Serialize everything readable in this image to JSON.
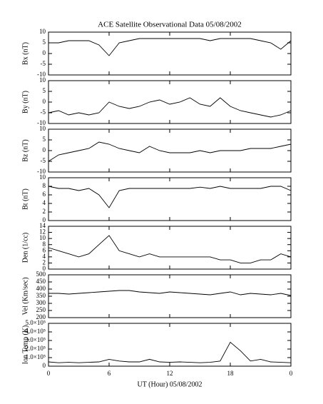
{
  "title": "ACE Satellite Observational Data   05/08/2002",
  "chart_data": [
    {
      "type": "line",
      "ylabel": "Bx (nT)",
      "xlim": [
        0,
        24
      ],
      "ylim": [
        -10,
        10
      ],
      "yticks": [
        -10,
        -5,
        0,
        5,
        10
      ],
      "x": [
        0,
        1,
        2,
        3,
        4,
        5,
        6,
        7,
        8,
        9,
        10,
        11,
        12,
        13,
        14,
        15,
        16,
        17,
        18,
        19,
        20,
        21,
        22,
        23,
        24
      ],
      "series": [
        {
          "color": "#000000",
          "values": [
            5,
            5,
            6,
            6,
            6,
            4,
            -1,
            5,
            6,
            7,
            7,
            7,
            7,
            7,
            7,
            7,
            6,
            7,
            7,
            7,
            7,
            6,
            5,
            2,
            6
          ]
        }
      ]
    },
    {
      "type": "line",
      "ylabel": "By (nT)",
      "xlim": [
        0,
        24
      ],
      "ylim": [
        -10,
        10
      ],
      "yticks": [
        -10,
        -5,
        0,
        5,
        10
      ],
      "x": [
        0,
        1,
        2,
        3,
        4,
        5,
        6,
        7,
        8,
        9,
        10,
        11,
        12,
        13,
        14,
        15,
        16,
        17,
        18,
        19,
        20,
        21,
        22,
        23,
        24
      ],
      "series": [
        {
          "color": "#000000",
          "values": [
            -5,
            -4,
            -6,
            -5,
            -6,
            -5,
            0,
            -2,
            -3,
            -2,
            0,
            1,
            -1,
            0,
            2,
            -1,
            -2,
            2,
            -2,
            -4,
            -5,
            -6,
            -7,
            -6,
            -4
          ]
        }
      ]
    },
    {
      "type": "line",
      "ylabel": "Bz (nT)",
      "xlim": [
        0,
        24
      ],
      "ylim": [
        -10,
        10
      ],
      "yticks": [
        -10,
        -5,
        0,
        5,
        10
      ],
      "x": [
        0,
        1,
        2,
        3,
        4,
        5,
        6,
        7,
        8,
        9,
        10,
        11,
        12,
        13,
        14,
        15,
        16,
        17,
        18,
        19,
        20,
        21,
        22,
        23,
        24
      ],
      "series": [
        {
          "color": "#000000",
          "values": [
            -5,
            -2,
            -1,
            0,
            1,
            4,
            3,
            1,
            0,
            -1,
            2,
            0,
            -1,
            -1,
            -1,
            0,
            -1,
            0,
            0,
            0,
            1,
            1,
            1,
            2,
            3
          ]
        }
      ]
    },
    {
      "type": "line",
      "ylabel": "Bt (nT)",
      "xlim": [
        0,
        24
      ],
      "ylim": [
        0,
        10
      ],
      "yticks": [
        0,
        2,
        4,
        6,
        8,
        10
      ],
      "x": [
        0,
        1,
        2,
        3,
        4,
        5,
        6,
        7,
        8,
        9,
        10,
        11,
        12,
        13,
        14,
        15,
        16,
        17,
        18,
        19,
        20,
        21,
        22,
        23,
        24
      ],
      "series": [
        {
          "color": "#000000",
          "values": [
            8,
            7.5,
            7.5,
            7,
            7.5,
            6,
            3,
            7,
            7.5,
            7.5,
            7.5,
            7.5,
            7.5,
            7.5,
            7.5,
            7.8,
            7.5,
            8,
            7.5,
            7.5,
            7.5,
            7.5,
            8,
            8,
            7
          ]
        }
      ]
    },
    {
      "type": "line",
      "ylabel": "Den (1/cc)",
      "xlim": [
        0,
        24
      ],
      "ylim": [
        0,
        14
      ],
      "yticks": [
        0,
        2,
        4,
        6,
        8,
        10,
        12,
        14
      ],
      "x": [
        0,
        1,
        2,
        3,
        4,
        5,
        6,
        7,
        8,
        9,
        10,
        11,
        12,
        13,
        14,
        15,
        16,
        17,
        18,
        19,
        20,
        21,
        22,
        23,
        24
      ],
      "series": [
        {
          "color": "#000000",
          "values": [
            7,
            6,
            5,
            4,
            5,
            8,
            11,
            6,
            5,
            4,
            5,
            4,
            4,
            4,
            4,
            4,
            4,
            3,
            3,
            2,
            2,
            3,
            3,
            5,
            4
          ]
        }
      ]
    },
    {
      "type": "line",
      "ylabel": "Vel (Km/sec)",
      "xlim": [
        0,
        24
      ],
      "ylim": [
        200,
        500
      ],
      "yticks": [
        200,
        250,
        300,
        350,
        400,
        450,
        500
      ],
      "x": [
        0,
        1,
        2,
        3,
        4,
        5,
        6,
        7,
        8,
        9,
        10,
        11,
        12,
        13,
        14,
        15,
        16,
        17,
        18,
        19,
        20,
        21,
        22,
        23,
        24
      ],
      "series": [
        {
          "color": "#000000",
          "values": [
            370,
            370,
            365,
            370,
            375,
            380,
            385,
            390,
            390,
            380,
            375,
            370,
            380,
            375,
            370,
            365,
            360,
            370,
            380,
            360,
            370,
            365,
            360,
            370,
            355
          ]
        }
      ]
    },
    {
      "type": "line",
      "ylabel": "Ion Temp (K)",
      "xlabel": "UT (Hour)  05/08/2002",
      "xlim": [
        0,
        24
      ],
      "ylim": [
        0,
        500000
      ],
      "yticks": [
        0,
        {
          "value": 100000,
          "label": "1.0×10⁵"
        },
        {
          "value": 200000,
          "label": "2.0×10⁵"
        },
        {
          "value": 300000,
          "label": "3.0×10⁵"
        },
        {
          "value": 400000,
          "label": "4.0×10⁵"
        },
        {
          "value": 500000,
          "label": "5.0×10⁵"
        }
      ],
      "xticks": [
        0,
        6,
        12,
        18,
        {
          "value": 24,
          "label": "0"
        }
      ],
      "x": [
        0,
        1,
        2,
        3,
        4,
        5,
        6,
        7,
        8,
        9,
        10,
        11,
        12,
        13,
        14,
        15,
        16,
        17,
        18,
        19,
        20,
        21,
        22,
        23,
        24
      ],
      "series": [
        {
          "color": "#000000",
          "values": [
            50000,
            40000,
            45000,
            40000,
            45000,
            50000,
            80000,
            60000,
            50000,
            50000,
            80000,
            50000,
            45000,
            50000,
            45000,
            40000,
            45000,
            60000,
            280000,
            180000,
            60000,
            80000,
            50000,
            45000,
            40000
          ]
        }
      ]
    }
  ]
}
